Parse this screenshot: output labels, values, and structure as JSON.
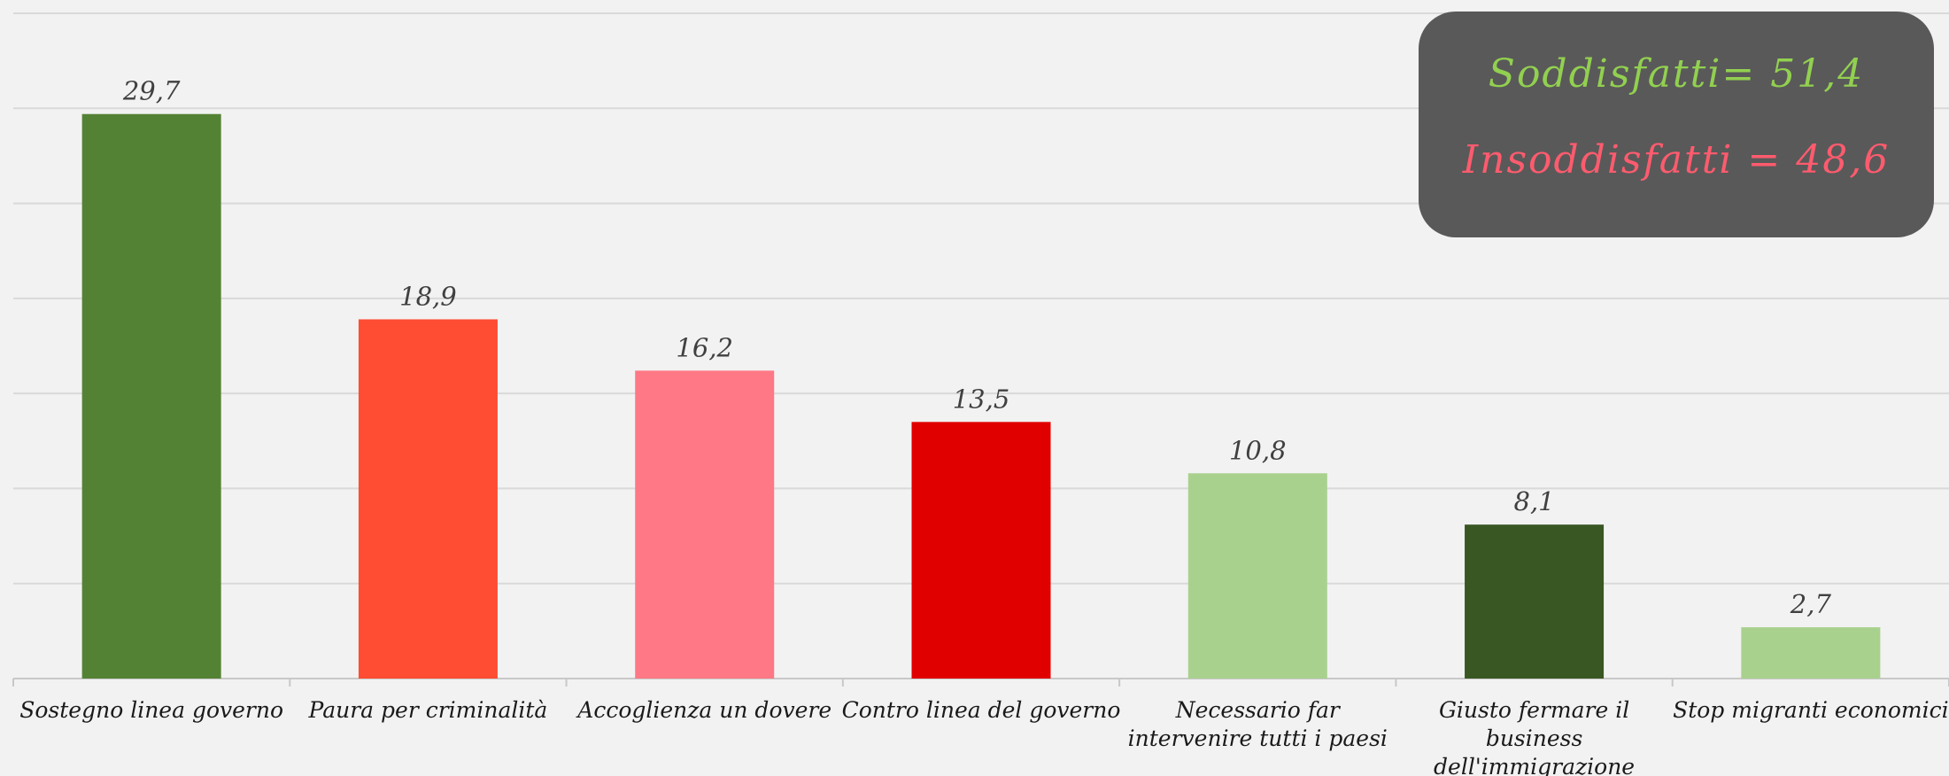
{
  "chart_data": {
    "type": "bar",
    "categories": [
      [
        "Sostegno linea governo"
      ],
      [
        "Paura per criminalità"
      ],
      [
        "Accoglienza un dovere"
      ],
      [
        "Contro linea del governo"
      ],
      [
        "Necessario far",
        "intervenire tutti i paesi"
      ],
      [
        "Giusto fermare il",
        "business",
        "dell'immigrazione"
      ],
      [
        "Stop migranti economici"
      ]
    ],
    "values": [
      29.7,
      18.9,
      16.2,
      13.5,
      10.8,
      8.1,
      2.7
    ],
    "value_labels": [
      "29,7",
      "18,9",
      "16,2",
      "13,5",
      "10,8",
      "8,1",
      "2,7"
    ],
    "colors": [
      "#548235",
      "#ff4d33",
      "#ff7885",
      "#e00000",
      "#a9d18e",
      "#385723",
      "#a9d18e"
    ],
    "ylim": [
      0,
      35
    ],
    "grid": true,
    "title": "",
    "xlabel": "",
    "ylabel": ""
  },
  "summary": {
    "soddisfatti": "Soddisfatti= 51,4",
    "insoddisfatti": "Insoddisfatti = 48,6"
  }
}
